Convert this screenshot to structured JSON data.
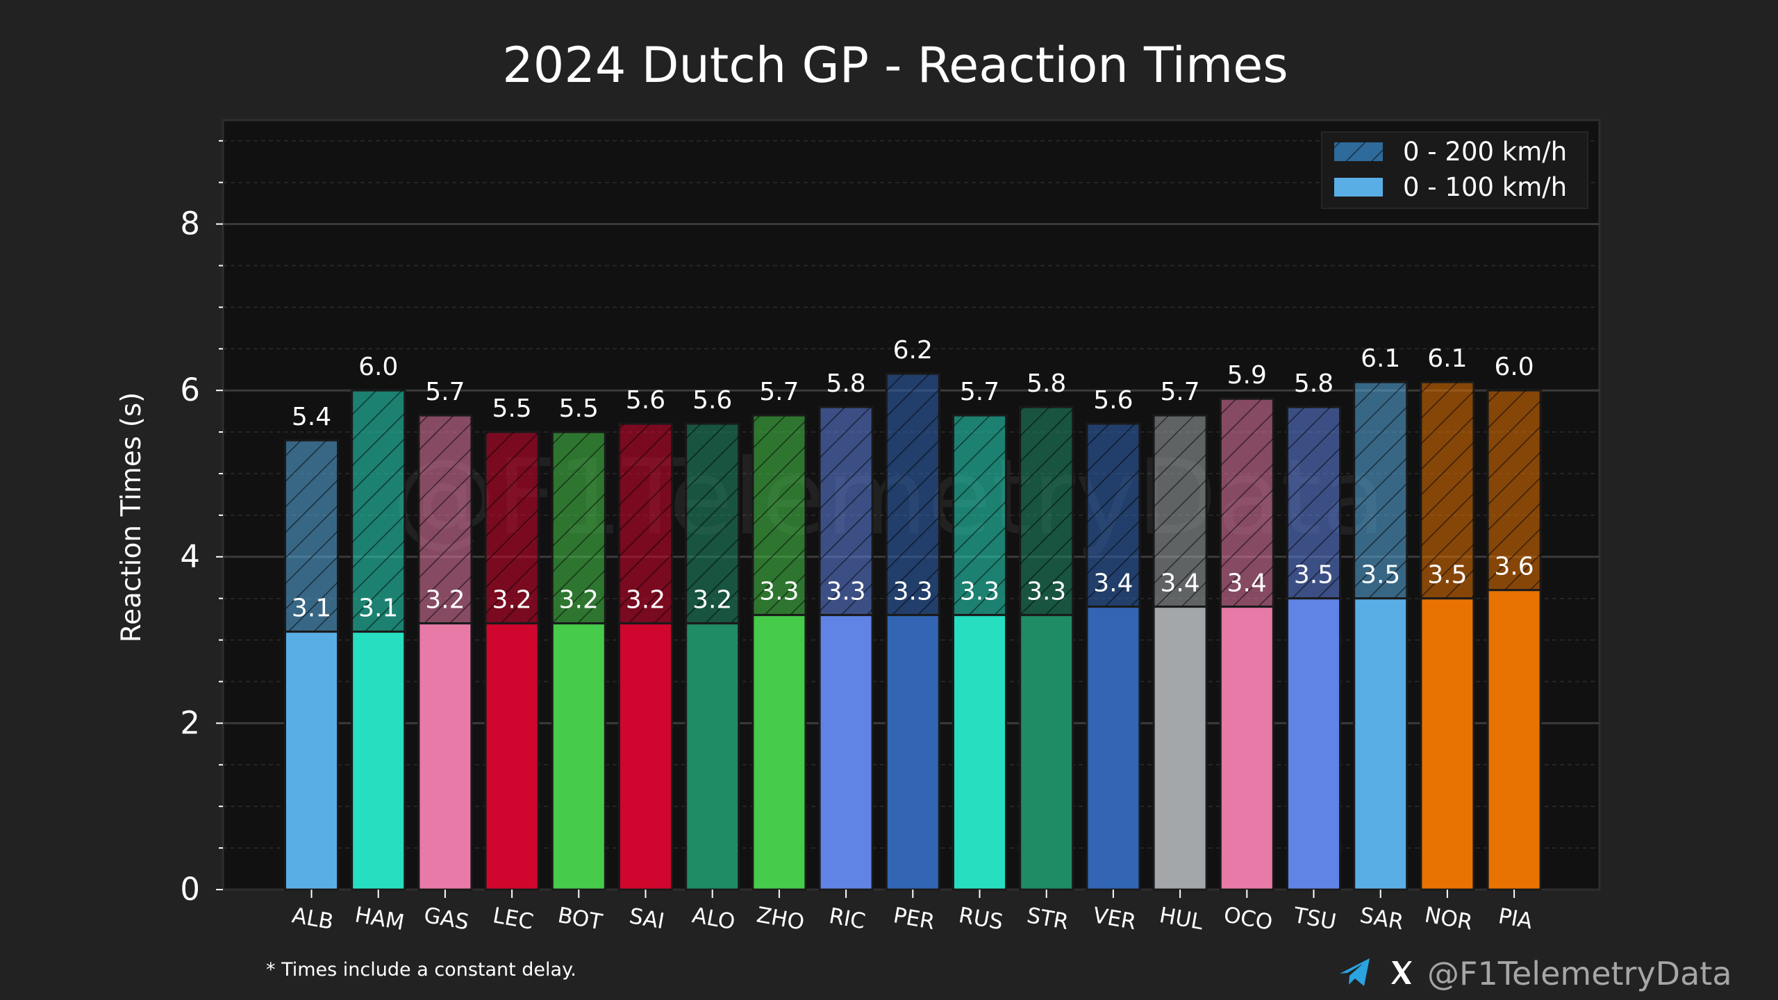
{
  "chart_data": {
    "type": "bar",
    "title": "2024 Dutch GP - Reaction Times",
    "ylabel": "Reaction Times (s)",
    "xlabel": "",
    "ylim": [
      0,
      9.3
    ],
    "yticks": [
      0,
      2,
      4,
      6,
      8
    ],
    "grid": true,
    "legend_position": "top-right",
    "categories": [
      "ALB",
      "HAM",
      "GAS",
      "LEC",
      "BOT",
      "SAI",
      "ALO",
      "ZHO",
      "RIC",
      "PER",
      "RUS",
      "STR",
      "VER",
      "HUL",
      "OCO",
      "TSU",
      "SAR",
      "NOR",
      "PIA"
    ],
    "colors": [
      "#5aaee6",
      "#27dfc0",
      "#e87aa8",
      "#d1062e",
      "#47cb4b",
      "#d1062e",
      "#1f8c66",
      "#47cb4b",
      "#6083e6",
      "#3265b4",
      "#27dfc0",
      "#1f8c66",
      "#3265b4",
      "#a3a7aa",
      "#e87aa8",
      "#6083e6",
      "#5aaee6",
      "#e87302",
      "#e87302"
    ],
    "series": [
      {
        "name": "0 - 200 km/h",
        "values": [
          5.4,
          6.0,
          5.7,
          5.5,
          5.5,
          5.6,
          5.6,
          5.7,
          5.8,
          6.2,
          5.7,
          5.8,
          5.6,
          5.7,
          5.9,
          5.8,
          6.1,
          6.1,
          6.0
        ],
        "labels": [
          "5.4",
          "6.0",
          "5.7",
          "5.5",
          "5.5",
          "5.6",
          "5.6",
          "5.7",
          "5.8",
          "6.2",
          "5.7",
          "5.8",
          "5.6",
          "5.7",
          "5.9",
          "5.8",
          "6.1",
          "6.1",
          "6.0"
        ]
      },
      {
        "name": "0 - 100 km/h",
        "values": [
          3.1,
          3.1,
          3.2,
          3.2,
          3.2,
          3.2,
          3.2,
          3.3,
          3.3,
          3.3,
          3.3,
          3.3,
          3.4,
          3.4,
          3.4,
          3.5,
          3.5,
          3.5,
          3.6
        ],
        "labels": [
          "3.1",
          "3.1",
          "3.2",
          "3.2",
          "3.2",
          "3.2",
          "3.2",
          "3.3",
          "3.3",
          "3.3",
          "3.3",
          "3.3",
          "3.4",
          "3.4",
          "3.4",
          "3.5",
          "3.5",
          "3.5",
          "3.6"
        ]
      }
    ]
  },
  "footnote": "* Times include a constant delay.",
  "watermark": "@F1TelemetryData",
  "social": {
    "handle": "@F1TelemetryData",
    "icons": [
      "telegram-icon",
      "x-icon"
    ]
  },
  "theme": {
    "background": "#222222",
    "plot_background": "#111111",
    "grid_major": "#3a3a3a",
    "grid_minor": "#2c2c2c",
    "text": "#ffffff",
    "telegram_blue": "#2aa3e0"
  }
}
